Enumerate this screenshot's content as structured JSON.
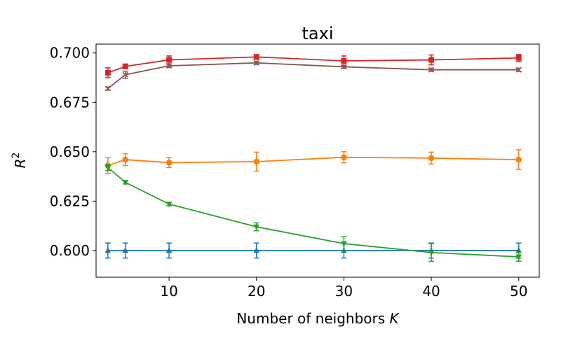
{
  "chart_data": {
    "type": "line",
    "title": "taxi",
    "xlabel_text": "Number of neighbors ",
    "xlabel_var": "K",
    "ylabel_base": "R",
    "ylabel_sup": "2",
    "xlim": [
      1.65,
      52.35
    ],
    "ylim": [
      0.5865,
      0.7045
    ],
    "xticks": [
      10,
      20,
      30,
      40,
      50
    ],
    "xtick_labels": [
      "10",
      "20",
      "30",
      "40",
      "50"
    ],
    "yticks": [
      0.6,
      0.625,
      0.65,
      0.675,
      0.7
    ],
    "ytick_labels": [
      "0.600",
      "0.625",
      "0.650",
      "0.675",
      "0.700"
    ],
    "x": [
      3,
      5,
      10,
      20,
      30,
      40,
      50
    ],
    "series": [
      {
        "name": "blue",
        "color": "#1f77b4",
        "marker": "triangle-up",
        "values": [
          0.6,
          0.6,
          0.6,
          0.6,
          0.6,
          0.6,
          0.6
        ],
        "errors": [
          0.0038,
          0.0038,
          0.0038,
          0.0038,
          0.0038,
          0.0038,
          0.0038
        ]
      },
      {
        "name": "orange",
        "color": "#ff7f0e",
        "marker": "circle",
        "values": [
          0.643,
          0.646,
          0.6445,
          0.645,
          0.6472,
          0.6468,
          0.646
        ],
        "errors": [
          0.004,
          0.003,
          0.0025,
          0.0048,
          0.0028,
          0.003,
          0.005
        ]
      },
      {
        "name": "green",
        "color": "#2ca02c",
        "marker": "triangle-down",
        "values": [
          0.642,
          0.6345,
          0.6235,
          0.612,
          0.6035,
          0.599,
          0.5968
        ],
        "errors": [
          0.0015,
          0.0008,
          0.0008,
          0.002,
          0.0035,
          0.0045,
          0.0022
        ]
      },
      {
        "name": "red",
        "color": "#d62728",
        "marker": "square",
        "values": [
          0.69,
          0.6932,
          0.6965,
          0.698,
          0.696,
          0.6965,
          0.6975
        ],
        "errors": [
          0.0025,
          0.0012,
          0.002,
          0.0012,
          0.0025,
          0.0025,
          0.0018
        ]
      },
      {
        "name": "brown",
        "color": "#8c564b",
        "marker": "x",
        "values": [
          0.682,
          0.689,
          0.6935,
          0.695,
          0.693,
          0.6915,
          0.6915
        ],
        "errors": [
          0.0008,
          0.0018,
          0.0008,
          0.0008,
          0.0008,
          0.0008,
          0.0008
        ]
      }
    ]
  }
}
